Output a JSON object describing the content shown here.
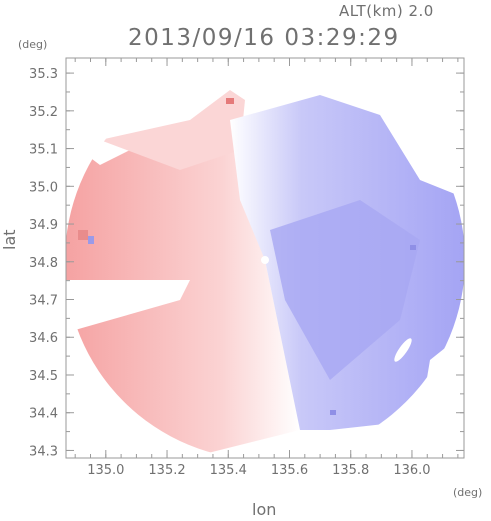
{
  "header": {
    "altitude_label": "ALT(km) 2.0",
    "datetime": "2013/09/16 03:29:29"
  },
  "chart_data": {
    "type": "heatmap",
    "title": "2013/09/16 03:29:29",
    "xlabel": "lon",
    "ylabel": "lat",
    "x_unit": "(deg)",
    "y_unit": "(deg)",
    "xlim": [
      134.87,
      136.17
    ],
    "ylim": [
      34.28,
      35.34
    ],
    "x_ticks": [
      135.0,
      135.2,
      135.4,
      135.6,
      135.8,
      136.0
    ],
    "x_tick_labels": [
      "135.0",
      "135.2",
      "135.4",
      "135.6",
      "135.8",
      "136.0"
    ],
    "y_ticks": [
      34.3,
      34.4,
      34.5,
      34.6,
      34.7,
      34.8,
      34.9,
      35.0,
      35.1,
      35.2,
      35.3
    ],
    "y_tick_labels": [
      "34.3",
      "34.4",
      "34.5",
      "34.6",
      "34.7",
      "34.8",
      "34.9",
      "35.0",
      "35.1",
      "35.2",
      "35.3"
    ],
    "radar_center": [
      135.53,
      34.81
    ],
    "colors": {
      "positive": "#f4a3a3",
      "negative": "#a3a3f4",
      "neutral": "#ffffff"
    },
    "grid": false,
    "legend": "none"
  }
}
